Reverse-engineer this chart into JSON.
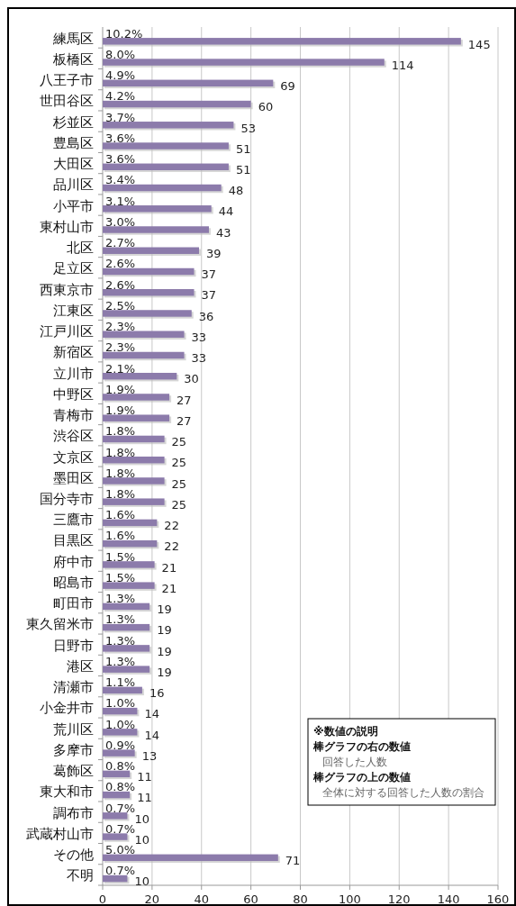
{
  "chart_data": {
    "type": "bar",
    "orientation": "horizontal",
    "categories": [
      "練馬区",
      "板橋区",
      "八王子市",
      "世田谷区",
      "杉並区",
      "豊島区",
      "大田区",
      "品川区",
      "小平市",
      "東村山市",
      "北区",
      "足立区",
      "西東京市",
      "江東区",
      "江戸川区",
      "新宿区",
      "立川市",
      "中野区",
      "青梅市",
      "渋谷区",
      "文京区",
      "墨田区",
      "国分寺市",
      "三鷹市",
      "目黒区",
      "府中市",
      "昭島市",
      "町田市",
      "東久留米市",
      "日野市",
      "港区",
      "清瀬市",
      "小金井市",
      "荒川区",
      "多摩市",
      "葛飾区",
      "東大和市",
      "調布市",
      "武蔵村山市",
      "その他",
      "不明"
    ],
    "values": [
      145,
      114,
      69,
      60,
      53,
      51,
      51,
      48,
      44,
      43,
      39,
      37,
      37,
      36,
      33,
      33,
      30,
      27,
      27,
      25,
      25,
      25,
      25,
      22,
      22,
      21,
      21,
      19,
      19,
      19,
      19,
      16,
      14,
      14,
      13,
      11,
      11,
      10,
      10,
      71,
      10
    ],
    "color": "#8c7bab",
    "data_labels": true,
    "xlim": [
      0,
      160
    ],
    "xticks": [
      0,
      20,
      40,
      60,
      80,
      100,
      120,
      140,
      160
    ],
    "grid": "x",
    "annotations": [
      {
        "text": "10.2%",
        "y": "練馬区"
      },
      {
        "text": "8.0%",
        "y": "板橋区"
      },
      {
        "text": "4.9%",
        "y": "八王子市"
      },
      {
        "text": "4.2%",
        "y": "世田谷区"
      },
      {
        "text": "3.7%",
        "y": "杉並区"
      },
      {
        "text": "3.6%",
        "y": "豊島区"
      },
      {
        "text": "3.6%",
        "y": "大田区"
      },
      {
        "text": "3.4%",
        "y": "品川区"
      },
      {
        "text": "3.1%",
        "y": "小平市"
      },
      {
        "text": "3.0%",
        "y": "東村山市"
      },
      {
        "text": "2.7%",
        "y": "北区"
      },
      {
        "text": "2.6%",
        "y": "足立区"
      },
      {
        "text": "2.6%",
        "y": "西東京市"
      },
      {
        "text": "2.5%",
        "y": "江東区"
      },
      {
        "text": "2.3%",
        "y": "江戸川区"
      },
      {
        "text": "2.3%",
        "y": "新宿区"
      },
      {
        "text": "2.1%",
        "y": "立川市"
      },
      {
        "text": "1.9%",
        "y": "中野区"
      },
      {
        "text": "1.9%",
        "y": "青梅市"
      },
      {
        "text": "1.8%",
        "y": "渋谷区"
      },
      {
        "text": "1.8%",
        "y": "文京区"
      },
      {
        "text": "1.8%",
        "y": "墨田区"
      },
      {
        "text": "1.8%",
        "y": "国分寺市"
      },
      {
        "text": "1.6%",
        "y": "三鷹市"
      },
      {
        "text": "1.6%",
        "y": "目黒区"
      },
      {
        "text": "1.5%",
        "y": "府中市"
      },
      {
        "text": "1.5%",
        "y": "昭島市"
      },
      {
        "text": "1.3%",
        "y": "町田市"
      },
      {
        "text": "1.3%",
        "y": "東久留米市"
      },
      {
        "text": "1.3%",
        "y": "日野市"
      },
      {
        "text": "1.3%",
        "y": "港区"
      },
      {
        "text": "1.1%",
        "y": "清瀬市"
      },
      {
        "text": "1.0%",
        "y": "小金井市"
      },
      {
        "text": "1.0%",
        "y": "荒川区"
      },
      {
        "text": "0.9%",
        "y": "多摩市"
      },
      {
        "text": "0.8%",
        "y": "葛飾区"
      },
      {
        "text": "0.8%",
        "y": "東大和市"
      },
      {
        "text": "0.7%",
        "y": "調布市"
      },
      {
        "text": "0.7%",
        "y": "武蔵村山市"
      },
      {
        "text": "5.0%",
        "y": "その他"
      },
      {
        "text": "0.7%",
        "y": "不明"
      },
      "※数値の説明",
      "棒グラフの右の数値",
      "回答した人数",
      "棒グラフの上の数値",
      "全体に対する回答した人数の割合"
    ]
  }
}
